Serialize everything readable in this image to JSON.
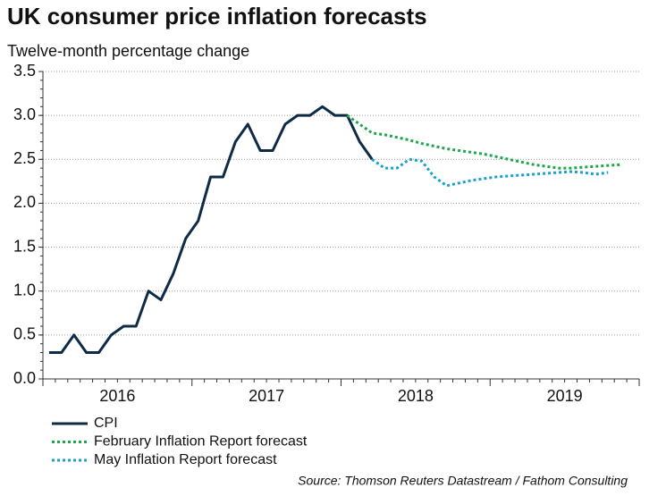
{
  "chart_data": {
    "type": "line",
    "title": "UK consumer price inflation forecasts",
    "subtitle": "Twelve-month percentage change",
    "source": "Source: Thomson Reuters Datastream / Fathom Consulting",
    "categories": [
      "2016",
      null,
      null,
      null,
      null,
      null,
      null,
      null,
      null,
      null,
      null,
      null,
      "2017",
      null,
      null,
      null,
      null,
      null,
      null,
      null,
      null,
      null,
      null,
      null,
      "2018",
      null,
      null,
      null,
      null,
      null,
      null,
      null,
      null,
      null,
      null,
      null,
      "2019",
      null,
      null,
      null,
      null,
      null,
      null,
      null,
      null,
      null,
      null,
      null
    ],
    "series": [
      {
        "name": "CPI",
        "color": "#0e2a47",
        "style": "solid",
        "values": [
          0.3,
          0.3,
          0.5,
          0.3,
          0.3,
          0.5,
          0.6,
          0.6,
          1.0,
          0.9,
          1.2,
          1.6,
          1.8,
          2.3,
          2.3,
          2.7,
          2.9,
          2.6,
          2.6,
          2.9,
          3.0,
          3.0,
          3.1,
          3.0,
          3.0,
          2.7,
          2.5,
          null,
          null,
          null,
          null,
          null,
          null,
          null,
          null,
          null,
          null,
          null,
          null,
          null,
          null,
          null,
          null,
          null,
          null,
          null,
          null,
          null
        ]
      },
      {
        "name": "February Inflation Report forecast",
        "color": "#1fa64b",
        "style": "dotted",
        "values": [
          null,
          null,
          null,
          null,
          null,
          null,
          null,
          null,
          null,
          null,
          null,
          null,
          null,
          null,
          null,
          null,
          null,
          null,
          null,
          null,
          null,
          null,
          null,
          null,
          3.0,
          2.9,
          2.8,
          2.78,
          2.75,
          2.72,
          2.68,
          2.65,
          2.62,
          2.6,
          2.58,
          2.56,
          2.53,
          2.5,
          2.47,
          2.44,
          2.42,
          2.4,
          2.4,
          2.41,
          2.42,
          2.43,
          2.44,
          null
        ]
      },
      {
        "name": "May Inflation Report forecast",
        "color": "#1aa0cf",
        "style": "dotted",
        "values": [
          null,
          null,
          null,
          null,
          null,
          null,
          null,
          null,
          null,
          null,
          null,
          null,
          null,
          null,
          null,
          null,
          null,
          null,
          null,
          null,
          null,
          null,
          null,
          null,
          null,
          null,
          2.5,
          2.4,
          2.4,
          2.5,
          2.48,
          2.3,
          2.2,
          2.23,
          2.26,
          2.28,
          2.3,
          2.31,
          2.32,
          2.33,
          2.34,
          2.35,
          2.36,
          2.35,
          2.33,
          2.35,
          null,
          null
        ]
      }
    ],
    "ylim": [
      0,
      3.5
    ],
    "yticks": [
      {
        "value": 0,
        "label": "0.0"
      },
      0.5,
      {
        "value": 1,
        "label": "1.0"
      },
      1.5,
      {
        "value": 2,
        "label": "2.0"
      },
      2.5,
      {
        "value": 3,
        "label": "3.0"
      },
      3.5
    ],
    "grid": true,
    "legend": "bottom-left"
  }
}
